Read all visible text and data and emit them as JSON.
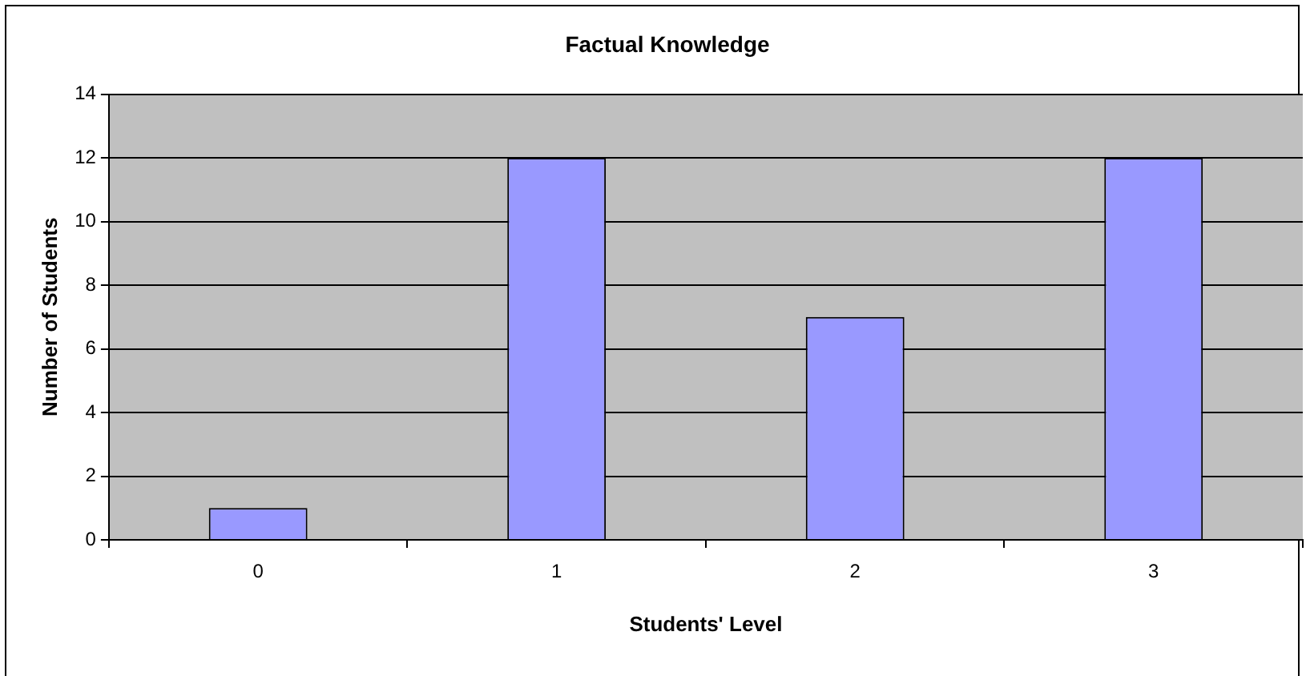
{
  "chart_data": {
    "type": "bar",
    "title": "Factual Knowledge",
    "xlabel": "Students' Level",
    "ylabel": "Number of Students",
    "categories": [
      "0",
      "1",
      "2",
      "3"
    ],
    "values": [
      1,
      12,
      7,
      12
    ],
    "color": "#9999ff",
    "ylim": [
      0,
      14
    ],
    "yticks": [
      0,
      2,
      4,
      6,
      8,
      10,
      12,
      14
    ],
    "grid": "y",
    "legend": false
  }
}
